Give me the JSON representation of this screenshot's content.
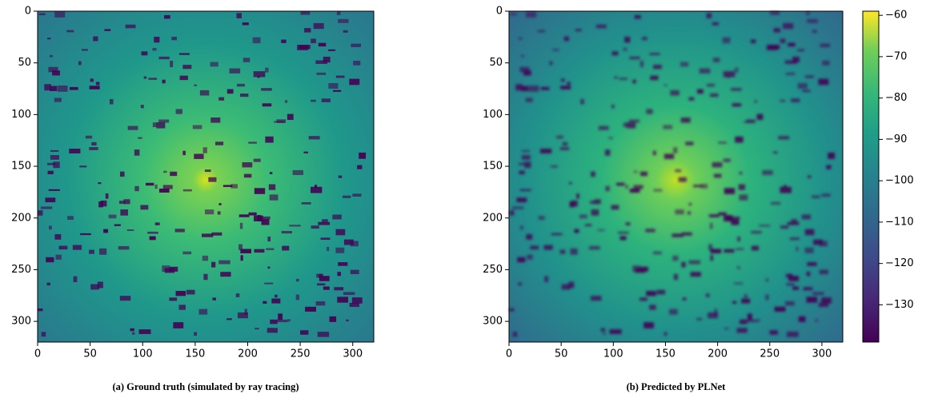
{
  "chart_data": [
    {
      "type": "heatmap",
      "caption": "(a) Ground truth (simulated by ray tracing)",
      "xlim": [
        0,
        320
      ],
      "ylim": [
        320,
        0
      ],
      "xticks": [
        0,
        50,
        100,
        150,
        200,
        250,
        300
      ],
      "yticks": [
        0,
        50,
        100,
        150,
        200,
        250,
        300
      ]
    },
    {
      "type": "heatmap",
      "caption": "(b) Predicted by PLNet",
      "xlim": [
        0,
        320
      ],
      "ylim": [
        320,
        0
      ],
      "xticks": [
        0,
        50,
        100,
        150,
        200,
        250,
        300
      ],
      "yticks": [
        0,
        50,
        100,
        150,
        200,
        250,
        300
      ]
    },
    {
      "type": "colorbar",
      "ylim": [
        -139,
        -59
      ],
      "yticks": [
        {
          "value": -60,
          "label": "−60"
        },
        {
          "value": -70,
          "label": "−70"
        },
        {
          "value": -80,
          "label": "−80"
        },
        {
          "value": -90,
          "label": "−90"
        },
        {
          "value": -100,
          "label": "−100"
        },
        {
          "value": -110,
          "label": "−110"
        },
        {
          "value": -120,
          "label": "−120"
        },
        {
          "value": -130,
          "label": "−130"
        }
      ]
    }
  ]
}
